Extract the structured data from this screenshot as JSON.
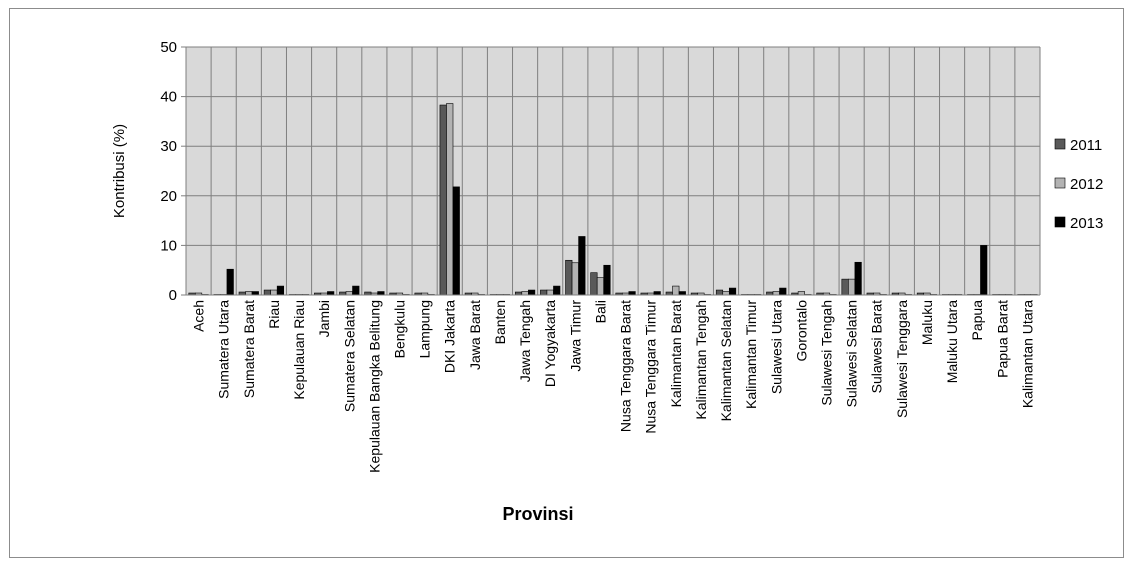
{
  "chart_data": {
    "type": "bar",
    "xlabel": "Provinsi",
    "ylabel": "Kontribusi (%)",
    "ylim": [
      0,
      50
    ],
    "yticks": [
      0,
      10,
      20,
      30,
      40,
      50
    ],
    "grid": true,
    "legend_position": "right",
    "categories": [
      "Aceh",
      "Sumatera Utara",
      "Sumatera Barat",
      "Riau",
      "Kepulauan Riau",
      "Jambi",
      "Sumatera Selatan",
      "Kepulauan Bangka Belitung",
      "Bengkulu",
      "Lampung",
      "DKI Jakarta",
      "Jawa Barat",
      "Banten",
      "Jawa Tengah",
      "DI Yogyakarta",
      "Jawa Timur",
      "Bali",
      "Nusa Tenggara Barat",
      "Nusa Tenggara Timur",
      "Kalimantan Barat",
      "Kalimantan Tengah",
      "Kalimantan Selatan",
      "Kalimantan Timur",
      "Sulawesi Utara",
      "Gorontalo",
      "Sulawesi Tengah",
      "Sulawesi Selatan",
      "Sulawesi Barat",
      "Sulawesi Tenggara",
      "Maluku",
      "Maluku Utara",
      "Papua",
      "Papua Barat",
      "Kalimantan Utara"
    ],
    "series": [
      {
        "name": "2011",
        "color": "#595959",
        "values": [
          0.4,
          0.1,
          0.6,
          1.0,
          0.1,
          0.4,
          0.6,
          0.6,
          0.4,
          0.4,
          38.3,
          0.4,
          0.1,
          0.6,
          1.0,
          7.0,
          4.5,
          0.4,
          0.4,
          0.6,
          0.4,
          1.0,
          0.1,
          0.6,
          0.4,
          0.4,
          3.2,
          0.4,
          0.4,
          0.4,
          0.1,
          0.1,
          0.1,
          0.1
        ]
      },
      {
        "name": "2012",
        "color": "#b3b3b3",
        "values": [
          0.4,
          0.1,
          0.7,
          1.0,
          0.1,
          0.4,
          0.7,
          0.4,
          0.4,
          0.4,
          38.6,
          0.4,
          0.1,
          0.7,
          1.0,
          6.5,
          3.5,
          0.4,
          0.4,
          1.8,
          0.4,
          0.7,
          0.1,
          0.7,
          0.7,
          0.4,
          3.2,
          0.4,
          0.4,
          0.4,
          0.1,
          0.1,
          0.1,
          0.1
        ]
      },
      {
        "name": "2013",
        "color": "#000000",
        "values": [
          0.1,
          5.2,
          0.7,
          1.8,
          0.1,
          0.7,
          1.8,
          0.7,
          0.1,
          0.1,
          21.8,
          0.1,
          0.1,
          1.0,
          1.8,
          11.8,
          6.0,
          0.7,
          0.7,
          0.7,
          0.1,
          1.4,
          0.1,
          1.4,
          0.1,
          0.1,
          6.6,
          0.1,
          0.1,
          0.1,
          0.1,
          10.0,
          0.1,
          0.1
        ]
      }
    ]
  }
}
